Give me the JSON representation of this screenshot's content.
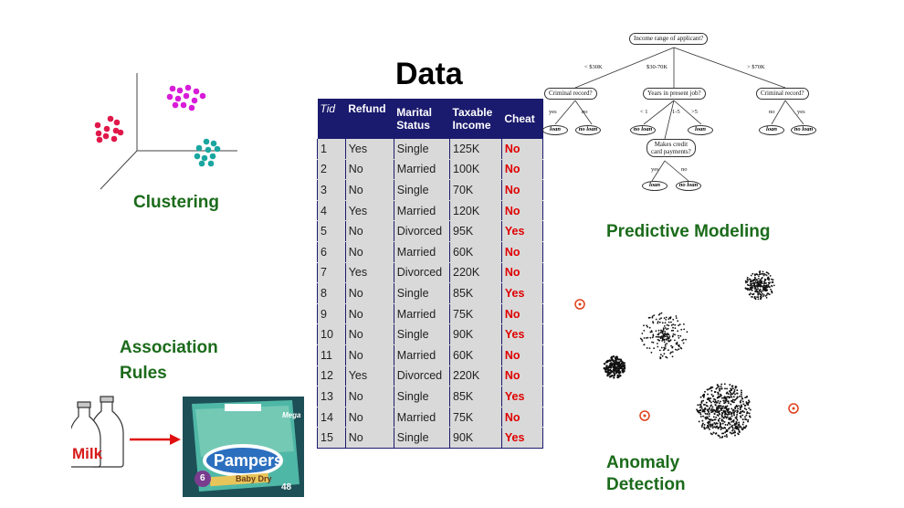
{
  "labels": {
    "clustering": "Clustering",
    "association_line1": "Association",
    "association_line2": "Rules",
    "data_title": "Data",
    "predictive": "Predictive Modeling",
    "anomaly_line1": "Anomaly",
    "anomaly_line2": "Detection",
    "milk": "Milk"
  },
  "table": {
    "headers": {
      "tid": "Tid",
      "refund": "Refund",
      "marital1": "Marital",
      "marital2": "Status",
      "taxable1": "Taxable",
      "taxable2": "Income",
      "cheat": "Cheat"
    },
    "rows": [
      [
        "1",
        "Yes",
        "Single",
        "125K",
        "No"
      ],
      [
        "2",
        "No",
        "Married",
        "100K",
        "No"
      ],
      [
        "3",
        "No",
        "Single",
        "70K",
        "No"
      ],
      [
        "4",
        "Yes",
        "Married",
        "120K",
        "No"
      ],
      [
        "5",
        "No",
        "Divorced",
        "95K",
        "Yes"
      ],
      [
        "6",
        "No",
        "Married",
        "60K",
        "No"
      ],
      [
        "7",
        "Yes",
        "Divorced",
        "220K",
        "No"
      ],
      [
        "8",
        "No",
        "Single",
        "85K",
        "Yes"
      ],
      [
        "9",
        "No",
        "Married",
        "75K",
        "No"
      ],
      [
        "10",
        "No",
        "Single",
        "90K",
        "Yes"
      ],
      [
        "11",
        "No",
        "Married",
        "60K",
        "No"
      ],
      [
        "12",
        "Yes",
        "Divorced",
        "220K",
        "No"
      ],
      [
        "13",
        "No",
        "Single",
        "85K",
        "Yes"
      ],
      [
        "14",
        "No",
        "Married",
        "75K",
        "No"
      ],
      [
        "15",
        "No",
        "Single",
        "90K",
        "Yes"
      ]
    ]
  },
  "tree": {
    "root": "Income range of applicant?",
    "edge_lt30": "< $30K",
    "edge_30_70": "$30-70K",
    "edge_gt70": "> $70K",
    "criminal1": "Criminal record?",
    "years": "Years in present job?",
    "criminal2": "Criminal record?",
    "yes": "yes",
    "no": "no",
    "lt1": "< 1",
    "1_5": "1-5",
    "gt5": ">5",
    "credit1": "Makes credit",
    "credit2": "card payments?",
    "loan": "loan",
    "no_loan": "no loan"
  },
  "pampers": {
    "brand": "Pampers",
    "sub": "Baby Dry",
    "mega": "Mega",
    "count": "48",
    "size": "6"
  },
  "colors": {
    "cluster_magenta": "#d81bd8",
    "cluster_red": "#e0184a",
    "cluster_teal": "#1aa6a0",
    "label_green": "#1b6b1b",
    "table_header": "#1a1a6e",
    "cheat_red": "#e00000",
    "anomaly_ring": "#e0401a"
  },
  "icons": [
    "milk-bottles-icon",
    "arrow-right-icon",
    "diaper-package-icon",
    "anomaly-outlier-icon"
  ]
}
